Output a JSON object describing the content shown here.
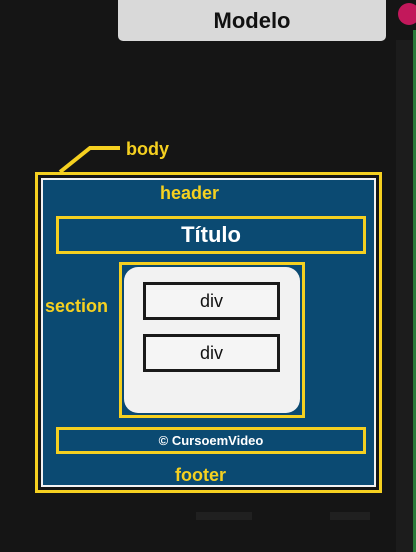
{
  "window": {
    "title": "Modelo"
  },
  "diagram": {
    "labels": {
      "body": "body",
      "header": "header",
      "section": "section",
      "footer": "footer"
    },
    "header_text": "Título",
    "divs": [
      "div",
      "div"
    ],
    "footer_text": "© CursoemVideo"
  },
  "colors": {
    "background": "#151515",
    "accent_yellow": "#f5d020",
    "panel_blue": "#0b4a72",
    "section_fill": "#f2f2f2",
    "title_bar": "#d9d9d9"
  }
}
